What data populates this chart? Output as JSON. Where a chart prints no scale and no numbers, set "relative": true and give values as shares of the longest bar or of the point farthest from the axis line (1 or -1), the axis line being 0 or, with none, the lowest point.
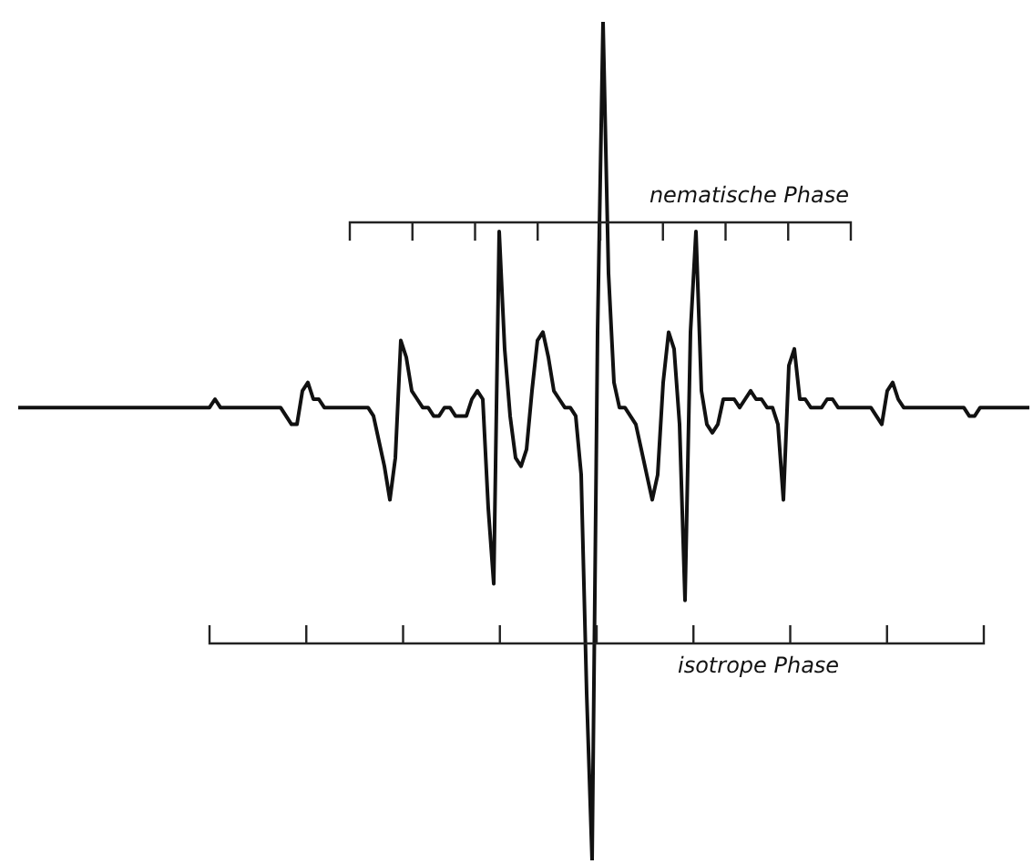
{
  "chart_data": {
    "type": "line",
    "relative": true,
    "tick_labels": false,
    "color": "#111111",
    "annotations": [
      "nematische Phase",
      "isotrope Phase"
    ],
    "categories": [
      null,
      null,
      null,
      null,
      null,
      null,
      null,
      null,
      null,
      null,
      null,
      null,
      null,
      null,
      null,
      null,
      null,
      null,
      null,
      null,
      null,
      null,
      null,
      null,
      null,
      null,
      null,
      null,
      null,
      null,
      null,
      null,
      null,
      null,
      null,
      null,
      null,
      null,
      null,
      null,
      null,
      null,
      null,
      null,
      null,
      null,
      null,
      null,
      null,
      null,
      null,
      null,
      null,
      null,
      null,
      null,
      null,
      null,
      null,
      null,
      null,
      null,
      null,
      null,
      null,
      null,
      null,
      null,
      null,
      null,
      null,
      null,
      null,
      null,
      null,
      null,
      null,
      null,
      null,
      null,
      null,
      null,
      null,
      null,
      null,
      null,
      null,
      null,
      null,
      null,
      null,
      null,
      null,
      null,
      null,
      null,
      null,
      null,
      null,
      null,
      null,
      null,
      null,
      null,
      null,
      null,
      null,
      null,
      null,
      null,
      null,
      null,
      null,
      null,
      null,
      null,
      null,
      null,
      null,
      null,
      null,
      null,
      null,
      null,
      null,
      null,
      null,
      null,
      null,
      null,
      null,
      null,
      null,
      null,
      null,
      null,
      null,
      null,
      null,
      null,
      null,
      null,
      null,
      null,
      null,
      null,
      null,
      null,
      null,
      null,
      null,
      null,
      null,
      null,
      null,
      null,
      null,
      null,
      null,
      null,
      null,
      null,
      null,
      null,
      null,
      null,
      null,
      null,
      null,
      null,
      null,
      null,
      null,
      null,
      null,
      null,
      null,
      null,
      null,
      null,
      null,
      null,
      null,
      null,
      null,
      null
    ],
    "values": [
      0.54,
      0.54,
      0.54,
      0.54,
      0.54,
      0.54,
      0.54,
      0.54,
      0.54,
      0.54,
      0.54,
      0.54,
      0.54,
      0.54,
      0.54,
      0.54,
      0.54,
      0.54,
      0.54,
      0.54,
      0.54,
      0.54,
      0.54,
      0.54,
      0.54,
      0.54,
      0.54,
      0.54,
      0.54,
      0.54,
      0.54,
      0.54,
      0.54,
      0.54,
      0.54,
      0.54,
      0.55,
      0.54,
      0.54,
      0.54,
      0.54,
      0.54,
      0.54,
      0.54,
      0.54,
      0.54,
      0.54,
      0.54,
      0.54,
      0.53,
      0.52,
      0.52,
      0.56,
      0.57,
      0.55,
      0.55,
      0.54,
      0.54,
      0.54,
      0.54,
      0.54,
      0.54,
      0.54,
      0.54,
      0.54,
      0.53,
      0.5,
      0.47,
      0.43,
      0.48,
      0.62,
      0.6,
      0.56,
      0.55,
      0.54,
      0.54,
      0.53,
      0.53,
      0.54,
      0.54,
      0.53,
      0.53,
      0.53,
      0.55,
      0.56,
      0.55,
      0.42,
      0.33,
      0.75,
      0.61,
      0.53,
      0.48,
      0.47,
      0.49,
      0.56,
      0.62,
      0.63,
      0.6,
      0.56,
      0.55,
      0.54,
      0.54,
      0.53,
      0.46,
      0.2,
      0,
      0.63,
      1,
      0.7,
      0.57,
      0.54,
      0.54,
      0.53,
      0.52,
      0.49,
      0.46,
      0.43,
      0.46,
      0.57,
      0.63,
      0.61,
      0.52,
      0.31,
      0.63,
      0.75,
      0.56,
      0.52,
      0.51,
      0.52,
      0.55,
      0.55,
      0.55,
      0.54,
      0.55,
      0.56,
      0.55,
      0.55,
      0.54,
      0.54,
      0.52,
      0.43,
      0.59,
      0.61,
      0.55,
      0.55,
      0.54,
      0.54,
      0.54,
      0.55,
      0.55,
      0.54,
      0.54,
      0.54,
      0.54,
      0.54,
      0.54,
      0.54,
      0.53,
      0.52,
      0.56,
      0.57,
      0.55,
      0.54,
      0.54,
      0.54,
      0.54,
      0.54,
      0.54,
      0.54,
      0.54,
      0.54,
      0.54,
      0.54,
      0.54,
      0.53,
      0.53,
      0.54,
      0.54,
      0.54,
      0.54,
      0.54,
      0.54,
      0.54,
      0.54,
      0.54,
      0.54
    ]
  }
}
